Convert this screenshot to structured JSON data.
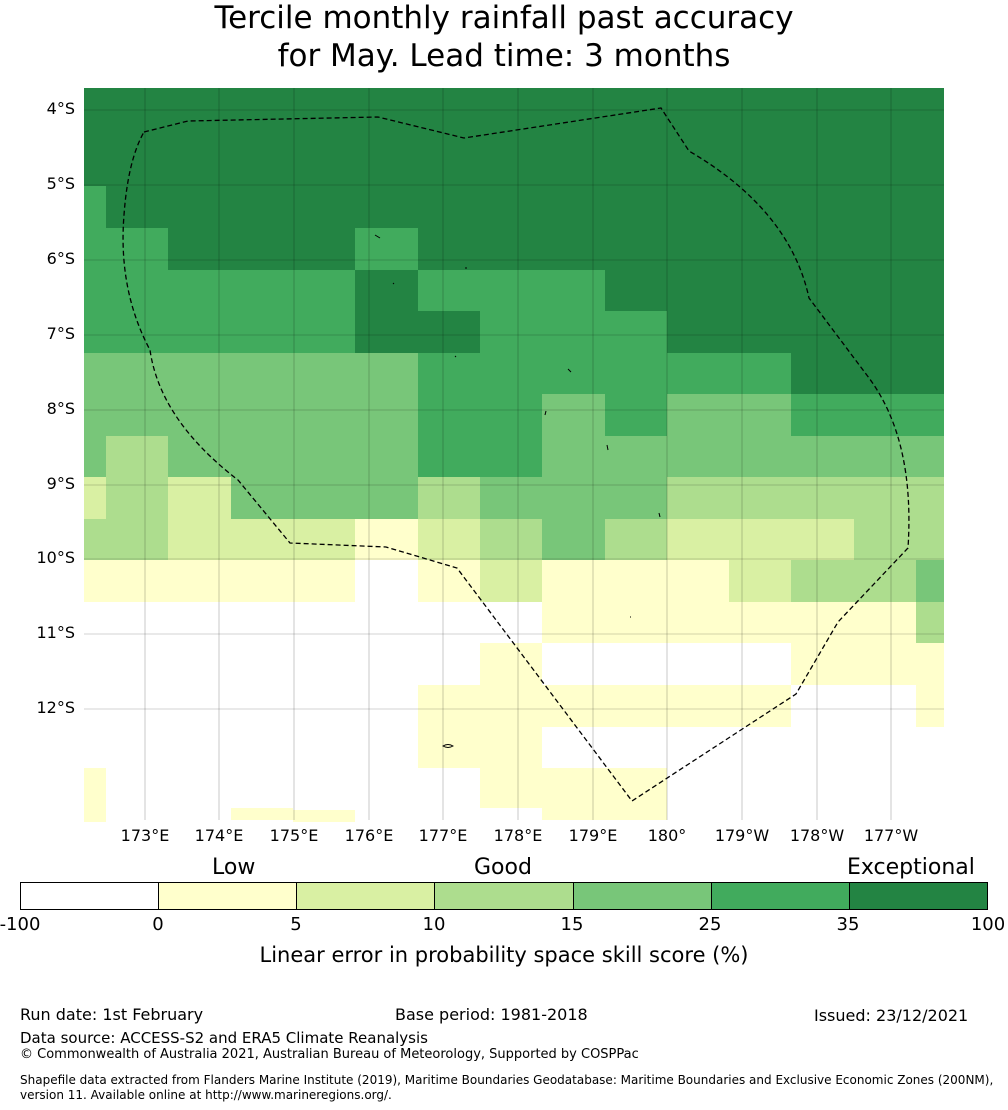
{
  "title": {
    "line1": "Tercile monthly rainfall past accuracy",
    "line2": "for May. Lead time: 3 months"
  },
  "map": {
    "lat_labels": [
      "4°S",
      "5°S",
      "6°S",
      "7°S",
      "8°S",
      "9°S",
      "10°S",
      "11°S",
      "12°S"
    ],
    "lon_labels": [
      "173°E",
      "174°E",
      "175°E",
      "176°E",
      "177°E",
      "178°E",
      "179°E",
      "180°",
      "179°W",
      "178°W",
      "177°W"
    ],
    "layers": [
      "skill-score grid",
      "graticule",
      "islands",
      "EEZ boundary"
    ]
  },
  "colorbar": {
    "categories": [
      "Low",
      "Good",
      "Exceptional"
    ],
    "ticks": [
      "-100",
      "0",
      "5",
      "10",
      "15",
      "25",
      "35",
      "100"
    ],
    "colors": [
      "#ffffff",
      "#ffffcc",
      "#d9f0a3",
      "#addd8e",
      "#78c679",
      "#41ab5d",
      "#238443"
    ],
    "label": "Linear error in probability space skill score (%)"
  },
  "footer": {
    "run_date": "Run date: 1st February",
    "base_period": "Base period: 1981-2018",
    "issued": "Issued: 23/12/2021",
    "data_source": "Data source: ACCESS-S2 and ERA5 Climate Reanalysis",
    "copyright": "© Commonwealth of Australia 2021, Australian Bureau of Meteorology, Supported by COSPPac",
    "shapefile": "Shapefile data extracted from Flanders Marine Institute (2019), Maritime Boundaries Geodatabase: Maritime Boundaries and Exclusive Economic Zones (200NM), version 11. Available online at http://www.marineregions.org/."
  }
}
